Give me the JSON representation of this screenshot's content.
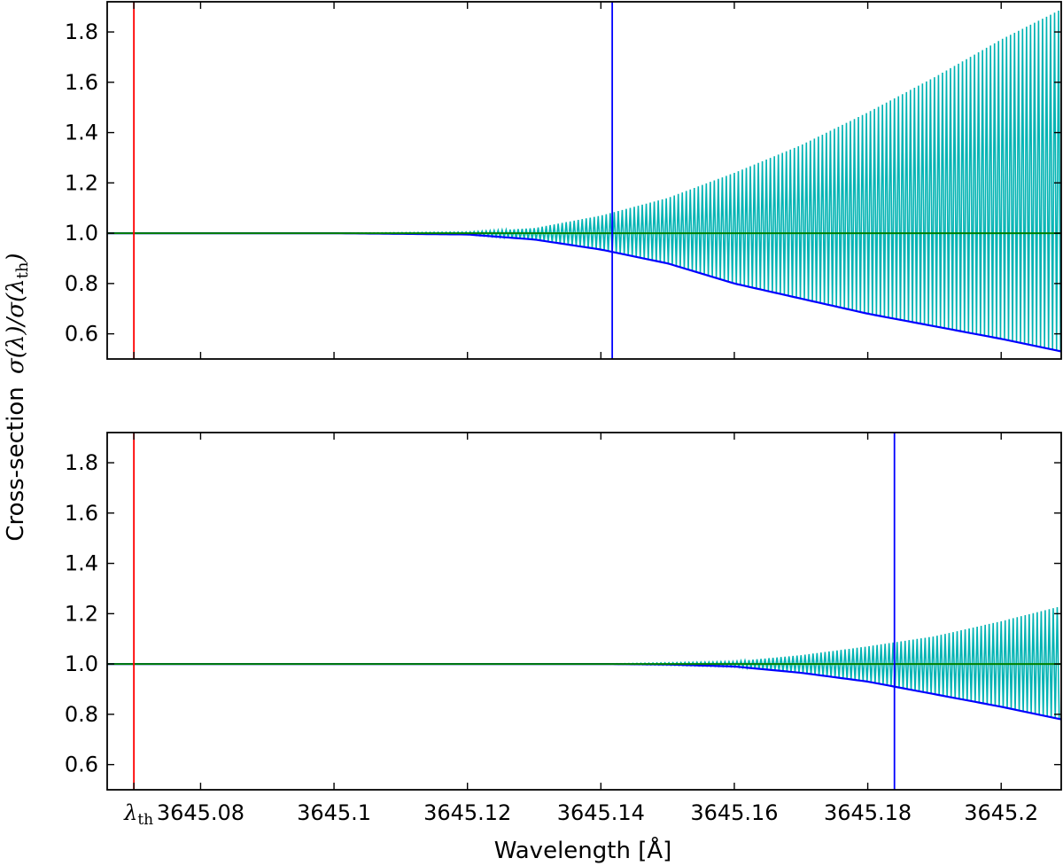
{
  "chart_data": {
    "type": "line",
    "shared_axes": {
      "xlabel": "Wavelength [Å]",
      "ylabel_prefix": "Cross-section",
      "ylabel_math": "σ(λ)/σ(λ_th)",
      "xlim": [
        3645.066,
        3645.209
      ],
      "ylim": [
        0.5,
        1.92
      ],
      "x_ticks": [
        3645.07,
        3645.08,
        3645.1,
        3645.12,
        3645.14,
        3645.16,
        3645.18,
        3645.2
      ],
      "x_tick_labels": [
        "λth",
        "3645.08",
        "3645.1",
        "3645.12",
        "3645.14",
        "3645.16",
        "3645.18",
        "3645.2"
      ],
      "y_ticks": [
        0.6,
        0.8,
        1.0,
        1.2,
        1.4,
        1.6,
        1.8
      ],
      "y_tick_labels": [
        "0.6",
        "0.8",
        "1.0",
        "1.2",
        "1.4",
        "1.6",
        "1.8"
      ]
    },
    "panels": [
      {
        "id": "top",
        "vlines": [
          {
            "x": 3645.07,
            "color": "#ff0000"
          },
          {
            "x": 3645.1417,
            "color": "#0000ff"
          }
        ],
        "hline": {
          "y": 1.0,
          "color": "#008000"
        },
        "series": [
          {
            "kind": "oscillating-resonances",
            "color": "#00b3b3",
            "x": [
              3645.1,
              3645.12,
              3645.13,
              3645.14,
              3645.15,
              3645.16,
              3645.17,
              3645.18,
              3645.19,
              3645.2,
              3645.209
            ],
            "upper": [
              1.0,
              1.005,
              1.02,
              1.07,
              1.14,
              1.24,
              1.35,
              1.48,
              1.62,
              1.77,
              1.89
            ],
            "lower": [
              1.0,
              0.995,
              0.975,
              0.935,
              0.88,
              0.8,
              0.74,
              0.68,
              0.63,
              0.58,
              0.53
            ]
          },
          {
            "kind": "envelope",
            "color": "#0000ff",
            "x": [
              3645.066,
              3645.1,
              3645.12,
              3645.13,
              3645.14,
              3645.15,
              3645.16,
              3645.17,
              3645.18,
              3645.19,
              3645.2,
              3645.209
            ],
            "y": [
              1.0,
              1.0,
              0.995,
              0.975,
              0.935,
              0.88,
              0.8,
              0.74,
              0.68,
              0.63,
              0.58,
              0.53
            ]
          }
        ]
      },
      {
        "id": "bottom",
        "vlines": [
          {
            "x": 3645.07,
            "color": "#ff0000"
          },
          {
            "x": 3645.184,
            "color": "#0000ff"
          }
        ],
        "hline": {
          "y": 1.0,
          "color": "#008000"
        },
        "series": [
          {
            "kind": "oscillating-resonances",
            "color": "#00b3b3",
            "x": [
              3645.14,
              3645.16,
              3645.17,
              3645.18,
              3645.19,
              3645.2,
              3645.209
            ],
            "upper": [
              1.0,
              1.01,
              1.035,
              1.07,
              1.11,
              1.17,
              1.23
            ],
            "lower": [
              1.0,
              0.99,
              0.965,
              0.93,
              0.88,
              0.83,
              0.78
            ]
          },
          {
            "kind": "envelope",
            "color": "#0000ff",
            "x": [
              3645.066,
              3645.14,
              3645.15,
              3645.16,
              3645.17,
              3645.18,
              3645.19,
              3645.2,
              3645.209
            ],
            "y": [
              1.0,
              1.0,
              0.998,
              0.99,
              0.965,
              0.93,
              0.88,
              0.83,
              0.78
            ]
          }
        ]
      }
    ]
  }
}
